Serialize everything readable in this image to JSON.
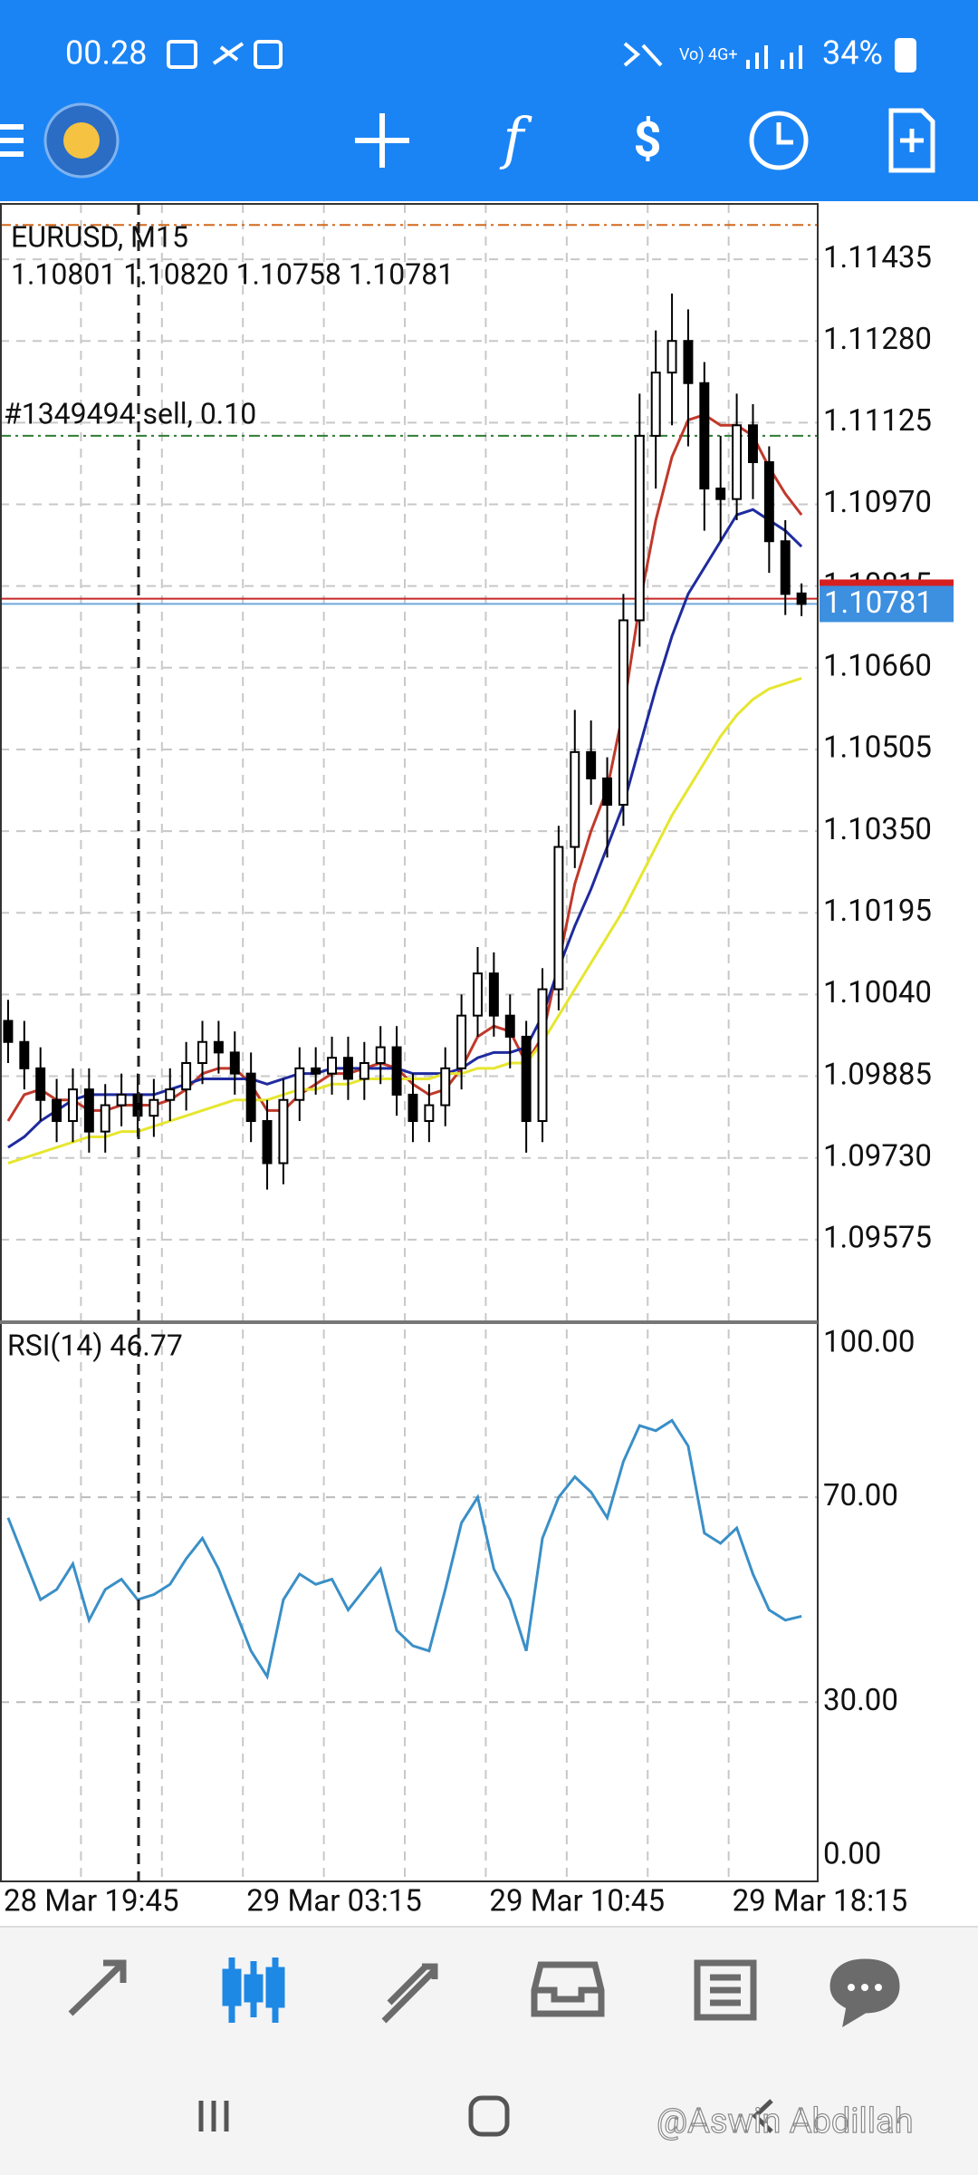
{
  "status_bar": {
    "time": "00.28",
    "battery": "34%"
  },
  "chart_data": {
    "type": "candlestick",
    "title": "EURUSD, M15",
    "ohlc_text": "1.10801 1.10820 1.10758 1.10781",
    "candles": [
      [
        1.0999,
        1.1003,
        1.0991,
        1.0995
      ],
      [
        1.0995,
        1.0999,
        1.0986,
        1.099
      ],
      [
        1.099,
        1.0994,
        1.098,
        1.0984
      ],
      [
        1.0984,
        1.0988,
        1.0976,
        1.098
      ],
      [
        1.098,
        1.099,
        1.0976,
        1.0986
      ],
      [
        1.0986,
        1.099,
        1.0974,
        1.0978
      ],
      [
        1.0978,
        1.0987,
        1.0974,
        1.0983
      ],
      [
        1.0983,
        1.0989,
        1.0979,
        1.0985
      ],
      [
        1.0985,
        1.0989,
        1.0977,
        1.0981
      ],
      [
        1.0981,
        1.0988,
        1.0977,
        1.0984
      ],
      [
        1.0984,
        1.099,
        1.098,
        1.0986
      ],
      [
        1.0986,
        1.0995,
        1.0982,
        1.0991
      ],
      [
        1.0991,
        1.0999,
        1.0987,
        1.0995
      ],
      [
        1.0995,
        1.0999,
        1.0989,
        1.0993
      ],
      [
        1.0993,
        1.0997,
        1.0985,
        1.0989
      ],
      [
        1.0989,
        1.0993,
        1.0976,
        1.098
      ],
      [
        1.098,
        1.0984,
        1.0967,
        1.0972
      ],
      [
        1.0972,
        1.0988,
        1.0968,
        1.0984
      ],
      [
        1.0984,
        1.0994,
        1.098,
        1.099
      ],
      [
        1.099,
        1.0994,
        1.0985,
        1.0989
      ],
      [
        1.0989,
        1.0996,
        1.0985,
        1.0992
      ],
      [
        1.0992,
        1.0996,
        1.0984,
        1.0988
      ],
      [
        1.0988,
        1.0995,
        1.0984,
        1.0991
      ],
      [
        1.0991,
        1.0998,
        1.0987,
        1.0994
      ],
      [
        1.0994,
        1.0998,
        1.0981,
        1.0985
      ],
      [
        1.0985,
        1.0989,
        1.0976,
        1.098
      ],
      [
        1.098,
        1.0987,
        1.0976,
        1.0983
      ],
      [
        1.0983,
        1.0994,
        1.0979,
        1.099
      ],
      [
        1.099,
        1.1004,
        1.0986,
        1.1
      ],
      [
        1.1,
        1.1013,
        1.0996,
        1.1008
      ],
      [
        1.1008,
        1.1012,
        1.0996,
        1.1
      ],
      [
        1.1,
        1.1004,
        1.099,
        1.0996
      ],
      [
        1.0996,
        1.0999,
        1.0974,
        1.098
      ],
      [
        1.098,
        1.1009,
        1.0976,
        1.1005
      ],
      [
        1.1005,
        1.1036,
        1.1001,
        1.1032
      ],
      [
        1.1032,
        1.1058,
        1.1028,
        1.105
      ],
      [
        1.105,
        1.1056,
        1.104,
        1.1045
      ],
      [
        1.1045,
        1.1049,
        1.103,
        1.104
      ],
      [
        1.104,
        1.108,
        1.1036,
        1.1075
      ],
      [
        1.1075,
        1.1118,
        1.107,
        1.111
      ],
      [
        1.111,
        1.113,
        1.11,
        1.1122
      ],
      [
        1.1122,
        1.1137,
        1.1112,
        1.1128
      ],
      [
        1.1128,
        1.1134,
        1.1108,
        1.112
      ],
      [
        1.112,
        1.1124,
        1.1092,
        1.11
      ],
      [
        1.11,
        1.111,
        1.109,
        1.1098
      ],
      [
        1.1098,
        1.1118,
        1.1094,
        1.1112
      ],
      [
        1.1112,
        1.1116,
        1.1098,
        1.1105
      ],
      [
        1.1105,
        1.1108,
        1.1084,
        1.109
      ],
      [
        1.109,
        1.1094,
        1.1076,
        1.108
      ],
      [
        1.10801,
        1.1082,
        1.10758,
        1.10781
      ]
    ],
    "series": [
      {
        "color": "#c0392b",
        "values": [
          1.098,
          1.0985,
          1.0986,
          1.0984,
          1.0984,
          1.0982,
          1.0982,
          1.0983,
          1.0983,
          1.0983,
          1.0984,
          1.0986,
          1.0989,
          1.099,
          1.099,
          1.0987,
          1.0982,
          1.0982,
          1.0985,
          1.0987,
          1.0989,
          1.0989,
          1.099,
          1.0991,
          1.099,
          1.0987,
          1.0985,
          1.0986,
          1.099,
          1.0996,
          1.0998,
          1.0997,
          1.0991,
          1.0996,
          1.101,
          1.1025,
          1.1035,
          1.1043,
          1.1058,
          1.1078,
          1.1094,
          1.1106,
          1.1113,
          1.1114,
          1.1112,
          1.1112,
          1.111,
          1.1104,
          1.1099,
          1.1095
        ]
      },
      {
        "color": "#1f2b9e",
        "values": [
          1.0975,
          1.0977,
          1.098,
          1.0982,
          1.0984,
          1.0985,
          1.0985,
          1.0985,
          1.0985,
          1.0985,
          1.0986,
          1.0987,
          1.0988,
          1.0988,
          1.0988,
          1.0988,
          1.0987,
          1.0988,
          1.0989,
          1.0989,
          1.099,
          1.099,
          1.099,
          1.099,
          1.099,
          1.0989,
          1.0989,
          1.0989,
          1.099,
          1.0992,
          1.0993,
          1.0993,
          1.0994,
          1.1,
          1.1009,
          1.1017,
          1.1024,
          1.1032,
          1.104,
          1.1051,
          1.1062,
          1.1072,
          1.108,
          1.1085,
          1.109,
          1.1095,
          1.1096,
          1.1094,
          1.1092,
          1.1089
        ]
      },
      {
        "color": "#e6e630",
        "values": [
          1.0972,
          1.0973,
          1.0974,
          1.0975,
          1.0976,
          1.0977,
          1.0977,
          1.0978,
          1.0978,
          1.0979,
          1.098,
          1.0981,
          1.0982,
          1.0983,
          1.0984,
          1.0984,
          1.0984,
          1.0985,
          1.0986,
          1.0986,
          1.0987,
          1.0987,
          1.0988,
          1.0988,
          1.0988,
          1.0988,
          1.0988,
          1.0989,
          1.0989,
          1.099,
          1.099,
          1.0991,
          1.0991,
          1.0995,
          1.1,
          1.1005,
          1.101,
          1.1015,
          1.102,
          1.1026,
          1.1032,
          1.1038,
          1.1043,
          1.1048,
          1.1053,
          1.1057,
          1.106,
          1.1062,
          1.1063,
          1.1064
        ]
      }
    ],
    "ylim": [
      1.0942,
      1.1154
    ],
    "yticks": [
      {
        "value": 1.11435,
        "label": "1.11435"
      },
      {
        "value": 1.1128,
        "label": "1.11280"
      },
      {
        "value": 1.11125,
        "label": "1.11125"
      },
      {
        "value": 1.1097,
        "label": "1.10970"
      },
      {
        "value": 1.10815,
        "label": "1.10815"
      },
      {
        "value": 1.1066,
        "label": "1.10660"
      },
      {
        "value": 1.10505,
        "label": "1.10505"
      },
      {
        "value": 1.1035,
        "label": "1.10350"
      },
      {
        "value": 1.10195,
        "label": "1.10195"
      },
      {
        "value": 1.1004,
        "label": "1.10040"
      },
      {
        "value": 1.09885,
        "label": "1.09885"
      },
      {
        "value": 1.0973,
        "label": "1.09730"
      },
      {
        "value": 1.09575,
        "label": "1.09575"
      }
    ],
    "xlim": [
      -0.5,
      50
    ],
    "xgrid": [
      -0.5,
      4.5,
      9.5,
      14.5,
      19.5,
      24.5,
      29.5,
      34.5,
      39.5,
      44.5
    ],
    "xticks": [
      {
        "value": -0.5,
        "label": "28 Mar 19:45"
      },
      {
        "value": 14.5,
        "label": "29 Mar 03:15"
      },
      {
        "value": 29.5,
        "label": "29 Mar 10:45"
      },
      {
        "value": 44.5,
        "label": "29 Mar 18:15"
      }
    ],
    "grid": true,
    "levels": [
      {
        "value": 1.115,
        "color": "#d2691e"
      },
      {
        "value": 1.111,
        "color": "#2e7d32",
        "label": "#1349494 sell, 0.10"
      },
      {
        "value": 1.10791,
        "color": "#c62828"
      }
    ],
    "bid": 1.10781,
    "indicator": {
      "title": "RSI(14) 46.77",
      "color": "#3a8fc7",
      "ylim": [
        -5,
        104
      ],
      "yticks": [
        {
          "value": 100,
          "label": "100.00"
        },
        {
          "value": 70,
          "label": "70.00"
        },
        {
          "value": 30,
          "label": "30.00"
        },
        {
          "value": 0,
          "label": "0.00"
        }
      ],
      "values": [
        66,
        58,
        50,
        52,
        57,
        46,
        52,
        54,
        50,
        51,
        53,
        58,
        62,
        56,
        48,
        40,
        35,
        50,
        55,
        53,
        54,
        48,
        52,
        56,
        44,
        41,
        40,
        52,
        65,
        70,
        56,
        50,
        40,
        62,
        70,
        74,
        71,
        66,
        77,
        84,
        83,
        85,
        80,
        63,
        61,
        64,
        55,
        48,
        46,
        46.77
      ]
    }
  },
  "watermark": "@Aswin Abdillah"
}
